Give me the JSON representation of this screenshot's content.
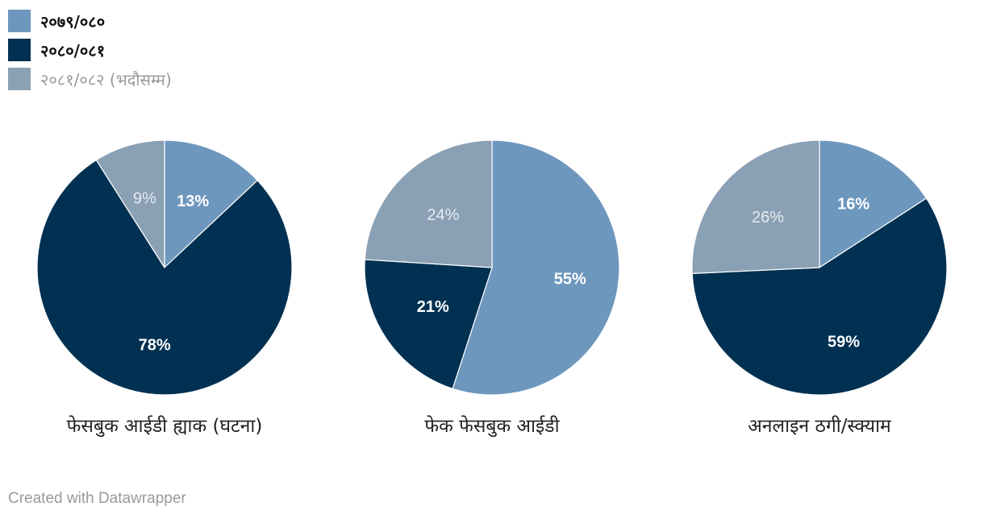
{
  "chart_data": {
    "type": "pie",
    "series": [
      {
        "name": "२०७९/०८०",
        "color": "#6d97bd"
      },
      {
        "name": "२०८०/०८१",
        "color": "#003152"
      },
      {
        "name": "२०८१/०८२ (भदौसम्म)",
        "color": "#8aa0b4"
      }
    ],
    "legend_position": "top-left",
    "pies": [
      {
        "title": "फेसबुक आईडी ह्याक (घटना)",
        "values": [
          13,
          78,
          9
        ],
        "labels": [
          "13%",
          "78%",
          "9%"
        ]
      },
      {
        "title": "फेक फेसबुक आईडी",
        "values": [
          55,
          21,
          24
        ],
        "labels": [
          "55%",
          "21%",
          "24%"
        ]
      },
      {
        "title": "अनलाइन ठगी/स्क्याम",
        "values": [
          16,
          59,
          26
        ],
        "labels": [
          "16%",
          "59%",
          "26%"
        ]
      }
    ]
  },
  "footer": {
    "credit": "Created with Datawrapper"
  }
}
